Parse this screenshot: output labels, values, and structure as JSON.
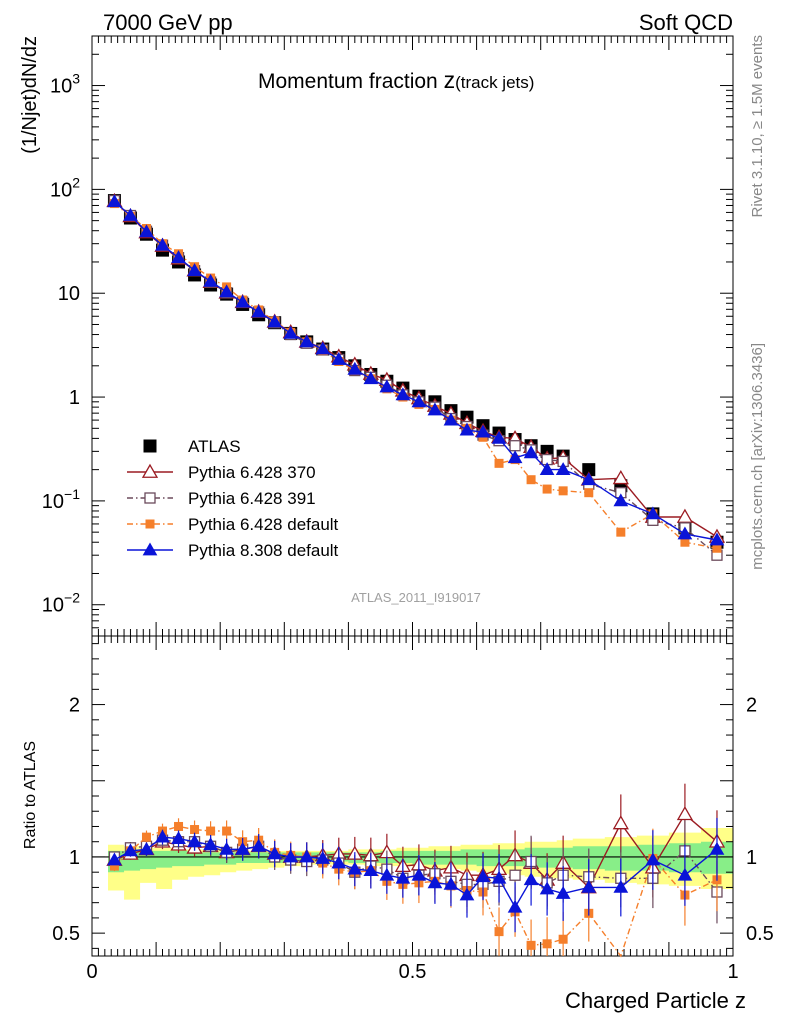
{
  "header": {
    "left": "7000 GeV pp",
    "right": "Soft QCD"
  },
  "side_labels": {
    "rivet": "Rivet 3.1.10, ≥ 1.5M events",
    "mcplots": "mcplots.cern.ch [arXiv:1306.3436]"
  },
  "watermark": "ATLAS_2011_I919017",
  "chart_data": [
    {
      "type": "scatter",
      "panel": "main",
      "title_main": "Momentum fraction ",
      "title_var": "z",
      "title_sub": "(track jets)",
      "ylabel": "(1/Njet)dN/dz",
      "yscale": "log",
      "ylim": [
        0.005,
        3000
      ],
      "xlim": [
        0,
        1
      ],
      "ytick_labels": [
        {
          "value": 0.01,
          "base": "10",
          "exp": "−2"
        },
        {
          "value": 0.1,
          "base": "10",
          "exp": "−1"
        },
        {
          "value": 1,
          "base": "1",
          "exp": ""
        },
        {
          "value": 10,
          "base": "10",
          "exp": ""
        },
        {
          "value": 100,
          "base": "10",
          "exp": "2"
        },
        {
          "value": 1000,
          "base": "10",
          "exp": "3"
        }
      ],
      "x": [
        0.035,
        0.06,
        0.085,
        0.11,
        0.135,
        0.16,
        0.185,
        0.21,
        0.235,
        0.26,
        0.285,
        0.31,
        0.335,
        0.36,
        0.385,
        0.41,
        0.435,
        0.46,
        0.485,
        0.51,
        0.535,
        0.56,
        0.585,
        0.61,
        0.635,
        0.66,
        0.685,
        0.71,
        0.735,
        0.775,
        0.825,
        0.875,
        0.925,
        0.975
      ],
      "legend": [
        {
          "label": "ATLAS",
          "marker": "square-filled",
          "color": "#000000",
          "line": "none"
        },
        {
          "label": "Pythia 6.428 370",
          "marker": "triangle-open",
          "color": "#9b1b22",
          "line": "solid"
        },
        {
          "label": "Pythia 6.428 391",
          "marker": "square-open",
          "color": "#6b4a5c",
          "line": "dashdot"
        },
        {
          "label": "Pythia 6.428 default",
          "marker": "square-filled-small",
          "color": "#f57f2b",
          "line": "dashdot"
        },
        {
          "label": "Pythia 8.308 default",
          "marker": "triangle-filled",
          "color": "#0a14d8",
          "line": "solid"
        }
      ],
      "series": [
        {
          "name": "ATLAS",
          "color": "#000000",
          "values": [
            78,
            53,
            37,
            26,
            20,
            15,
            12,
            9.8,
            7.8,
            6.2,
            5.2,
            4.1,
            3.4,
            2.9,
            2.4,
            2.0,
            1.65,
            1.42,
            1.22,
            1.02,
            0.9,
            0.74,
            0.64,
            0.53,
            0.45,
            0.39,
            0.34,
            0.3,
            0.27,
            0.2,
            0.14,
            0.075,
            0.055,
            0.04
          ]
        },
        {
          "name": "Pythia 6.428 370",
          "color": "#9b1b22",
          "values": [
            77,
            55,
            38.5,
            28.5,
            21.5,
            16.5,
            12.8,
            10.1,
            8.2,
            6.6,
            5.3,
            4.2,
            3.4,
            2.95,
            2.45,
            2.05,
            1.67,
            1.46,
            1.15,
            0.97,
            0.82,
            0.69,
            0.56,
            0.47,
            0.41,
            0.4,
            0.33,
            0.255,
            0.26,
            0.16,
            0.165,
            0.07,
            0.07,
            0.045
          ]
        },
        {
          "name": "Pythia 6.428 391",
          "color": "#6b4a5c",
          "values": [
            78,
            56,
            39.5,
            29,
            22,
            16.5,
            12.8,
            10.1,
            8.2,
            6.6,
            5.2,
            4.0,
            3.3,
            2.85,
            2.3,
            1.8,
            1.55,
            1.3,
            1.05,
            0.9,
            0.8,
            0.62,
            0.52,
            0.43,
            0.38,
            0.34,
            0.31,
            0.25,
            0.24,
            0.145,
            0.12,
            0.065,
            0.055,
            0.03
          ]
        },
        {
          "name": "Pythia 6.428 default",
          "color": "#f57f2b",
          "values": [
            73,
            55,
            42,
            30,
            24,
            18,
            14,
            11.5,
            8.6,
            6.9,
            5.4,
            4.2,
            3.4,
            2.8,
            2.2,
            1.8,
            1.5,
            1.2,
            1.0,
            0.85,
            0.76,
            0.6,
            0.5,
            0.41,
            0.23,
            0.25,
            0.16,
            0.13,
            0.125,
            0.12,
            0.05,
            0.075,
            0.04,
            0.035
          ]
        },
        {
          "name": "Pythia 8.308 default",
          "color": "#0a14d8",
          "values": [
            76,
            56,
            39,
            29,
            22,
            16.5,
            13,
            10.3,
            8.2,
            6.6,
            5.3,
            4.1,
            3.4,
            2.9,
            2.3,
            1.85,
            1.5,
            1.25,
            1.05,
            0.9,
            0.75,
            0.6,
            0.48,
            0.46,
            0.4,
            0.26,
            0.29,
            0.2,
            0.2,
            0.16,
            0.1,
            0.075,
            0.048,
            0.042
          ]
        }
      ]
    },
    {
      "type": "scatter",
      "panel": "ratio",
      "ylabel": "Ratio to ATLAS",
      "xlabel": "Charged Particle z",
      "ylim": [
        0.35,
        2.45
      ],
      "xlim": [
        0,
        1
      ],
      "yticks": [
        0.5,
        1,
        2
      ],
      "ytick_labels": [
        "0.5",
        "1",
        "2"
      ],
      "xticks": [
        0,
        0.5,
        1
      ],
      "xtick_labels": [
        "0",
        "0.5",
        "1"
      ],
      "x": [
        0.035,
        0.06,
        0.085,
        0.11,
        0.135,
        0.16,
        0.185,
        0.21,
        0.235,
        0.26,
        0.285,
        0.31,
        0.335,
        0.36,
        0.385,
        0.41,
        0.435,
        0.46,
        0.485,
        0.51,
        0.535,
        0.56,
        0.585,
        0.61,
        0.635,
        0.66,
        0.685,
        0.71,
        0.735,
        0.775,
        0.825,
        0.875,
        0.925,
        0.975
      ],
      "band_edges": [
        0.025,
        0.05,
        0.075,
        0.1,
        0.125,
        0.15,
        0.175,
        0.2,
        0.225,
        0.25,
        0.275,
        0.3,
        0.325,
        0.35,
        0.375,
        0.4,
        0.425,
        0.45,
        0.475,
        0.5,
        0.525,
        0.55,
        0.575,
        0.6,
        0.625,
        0.65,
        0.675,
        0.7,
        0.725,
        0.75,
        0.8,
        0.85,
        0.9,
        0.95,
        1.0
      ],
      "band_outer": {
        "color": "#ffff88",
        "lower": [
          0.78,
          0.72,
          0.83,
          0.79,
          0.85,
          0.87,
          0.88,
          0.9,
          0.91,
          0.92,
          0.93,
          0.94,
          0.95,
          0.95,
          0.95,
          0.95,
          0.94,
          0.94,
          0.94,
          0.93,
          0.92,
          0.92,
          0.91,
          0.9,
          0.89,
          0.88,
          0.87,
          0.86,
          0.86,
          0.85,
          0.83,
          0.82,
          0.81,
          0.79
        ],
        "upper": [
          1.08,
          1.07,
          1.06,
          1.06,
          1.05,
          1.05,
          1.05,
          1.05,
          1.04,
          1.04,
          1.04,
          1.04,
          1.04,
          1.04,
          1.04,
          1.05,
          1.05,
          1.05,
          1.06,
          1.06,
          1.07,
          1.07,
          1.08,
          1.08,
          1.09,
          1.09,
          1.1,
          1.1,
          1.11,
          1.12,
          1.13,
          1.14,
          1.16,
          1.19
        ]
      },
      "band_inner": {
        "color": "#88ee88",
        "lower": [
          0.9,
          0.91,
          0.92,
          0.93,
          0.94,
          0.94,
          0.95,
          0.95,
          0.96,
          0.96,
          0.96,
          0.97,
          0.97,
          0.97,
          0.97,
          0.96,
          0.96,
          0.96,
          0.96,
          0.95,
          0.95,
          0.95,
          0.95,
          0.94,
          0.94,
          0.94,
          0.93,
          0.93,
          0.93,
          0.92,
          0.91,
          0.91,
          0.9,
          0.89
        ],
        "upper": [
          1.04,
          1.04,
          1.04,
          1.04,
          1.04,
          1.03,
          1.03,
          1.03,
          1.03,
          1.03,
          1.03,
          1.03,
          1.03,
          1.03,
          1.03,
          1.03,
          1.03,
          1.04,
          1.04,
          1.04,
          1.04,
          1.04,
          1.05,
          1.05,
          1.05,
          1.05,
          1.06,
          1.06,
          1.06,
          1.07,
          1.07,
          1.08,
          1.09,
          1.1
        ]
      },
      "series": [
        {
          "name": "Pythia 6.428 370",
          "color": "#9b1b22",
          "values": [
            0.98,
            1.02,
            1.05,
            1.1,
            1.08,
            1.06,
            1.07,
            1.03,
            1.05,
            1.07,
            1.02,
            1.0,
            1.0,
            1.01,
            1.02,
            1.02,
            1.01,
            1.03,
            0.94,
            0.95,
            0.91,
            0.93,
            0.88,
            0.88,
            0.92,
            1.01,
            0.96,
            0.85,
            0.96,
            0.8,
            1.22,
            0.93,
            1.28,
            1.1
          ]
        },
        {
          "name": "Pythia 6.428 391",
          "color": "#6b4a5c",
          "values": [
            1.0,
            1.06,
            1.07,
            1.11,
            1.1,
            1.1,
            1.07,
            1.03,
            1.05,
            1.07,
            1.0,
            0.98,
            0.97,
            0.98,
            0.96,
            0.9,
            0.94,
            0.92,
            0.86,
            0.88,
            0.89,
            0.84,
            0.82,
            0.82,
            0.84,
            0.88,
            0.97,
            0.83,
            0.88,
            0.87,
            0.86,
            0.86,
            1.04,
            0.77
          ]
        },
        {
          "name": "Pythia 6.428 default",
          "color": "#f57f2b",
          "values": [
            0.94,
            1.04,
            1.13,
            1.17,
            1.2,
            1.18,
            1.17,
            1.17,
            1.1,
            1.11,
            1.03,
            1.01,
            1.0,
            0.96,
            0.92,
            0.9,
            0.91,
            0.84,
            0.82,
            0.83,
            0.84,
            0.81,
            0.78,
            0.77,
            0.51,
            0.64,
            0.42,
            0.43,
            0.46,
            0.63,
            0.33,
            0.99,
            0.75,
            0.85
          ]
        },
        {
          "name": "Pythia 8.308 default",
          "color": "#0a14d8",
          "values": [
            0.98,
            1.04,
            1.05,
            1.13,
            1.12,
            1.1,
            1.08,
            1.05,
            1.05,
            1.07,
            1.02,
            1.0,
            1.0,
            0.99,
            0.96,
            0.92,
            0.91,
            0.88,
            0.86,
            0.88,
            0.83,
            0.82,
            0.75,
            0.87,
            0.86,
            0.67,
            0.85,
            0.79,
            0.76,
            0.8,
            0.8,
            0.98,
            0.88,
            1.05
          ]
        }
      ]
    }
  ]
}
